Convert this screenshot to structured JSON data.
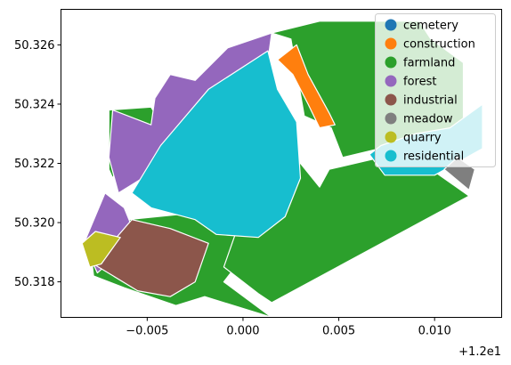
{
  "chart_data": {
    "type": "map",
    "x_offset_label": "+1.2e1",
    "xlim": [
      -0.0095,
      0.0135
    ],
    "ylim": [
      50.3168,
      50.3272
    ],
    "x_ticks": [
      {
        "value": -0.005,
        "label": "−0.005"
      },
      {
        "value": 0.0,
        "label": "0.000"
      },
      {
        "value": 0.005,
        "label": "0.005"
      },
      {
        "value": 0.01,
        "label": "0.010"
      }
    ],
    "y_ticks": [
      {
        "value": 50.318,
        "label": "50.318"
      },
      {
        "value": 50.32,
        "label": "50.320"
      },
      {
        "value": 50.322,
        "label": "50.322"
      },
      {
        "value": 50.324,
        "label": "50.324"
      },
      {
        "value": 50.326,
        "label": "50.326"
      }
    ],
    "legend": {
      "position": "top-right",
      "entries": [
        {
          "label": "cemetery",
          "color": "#1f77b4"
        },
        {
          "label": "construction",
          "color": "#ff7f0e"
        },
        {
          "label": "farmland",
          "color": "#2ca02c"
        },
        {
          "label": "forest",
          "color": "#9467bd"
        },
        {
          "label": "industrial",
          "color": "#8c564b"
        },
        {
          "label": "meadow",
          "color": "#7f7f7f"
        },
        {
          "label": "quarry",
          "color": "#bcbd22"
        },
        {
          "label": "residential",
          "color": "#17becf"
        }
      ]
    },
    "regions": [
      {
        "category": "farmland",
        "coords": [
          [
            -0.0078,
            50.3182
          ],
          [
            -0.0062,
            50.3178
          ],
          [
            -0.0035,
            50.3172
          ],
          [
            -0.002,
            50.3175
          ],
          [
            0.0015,
            50.3168
          ],
          [
            -0.001,
            50.318
          ],
          [
            0.0008,
            50.3195
          ],
          [
            -0.003,
            50.3203
          ],
          [
            -0.006,
            50.3201
          ],
          [
            -0.008,
            50.3193
          ]
        ]
      },
      {
        "category": "farmland",
        "coords": [
          [
            0.0015,
            50.3173
          ],
          [
            0.0118,
            50.3209
          ],
          [
            0.0085,
            50.3224
          ],
          [
            0.0045,
            50.3218
          ],
          [
            0.004,
            50.3212
          ],
          [
            0.003,
            50.322
          ],
          [
            0.0015,
            50.3218
          ],
          [
            0.0003,
            50.321
          ],
          [
            -0.0003,
            50.3198
          ],
          [
            -0.001,
            50.3185
          ],
          [
            0.0008,
            50.3176
          ]
        ]
      },
      {
        "category": "farmland",
        "coords": [
          [
            -0.007,
            50.3238
          ],
          [
            -0.0048,
            50.3239
          ],
          [
            -0.0032,
            50.3222
          ],
          [
            -0.0055,
            50.3214
          ],
          [
            -0.0062,
            50.3224
          ],
          [
            -0.0068,
            50.3215
          ],
          [
            -0.007,
            50.3218
          ]
        ]
      },
      {
        "category": "farmland",
        "coords": [
          [
            0.0015,
            50.3264
          ],
          [
            0.004,
            50.3268
          ],
          [
            0.0092,
            50.3268
          ],
          [
            0.0098,
            50.3262
          ],
          [
            0.0115,
            50.3254
          ],
          [
            0.0115,
            50.323
          ],
          [
            0.0078,
            50.3226
          ],
          [
            0.0052,
            50.3222
          ],
          [
            0.0046,
            50.3232
          ],
          [
            0.0032,
            50.3236
          ],
          [
            0.0025,
            50.3262
          ]
        ]
      },
      {
        "category": "forest",
        "coords": [
          [
            -0.0083,
            50.3193
          ],
          [
            -0.0072,
            50.321
          ],
          [
            -0.0062,
            50.3205
          ],
          [
            -0.0057,
            50.3197
          ],
          [
            -0.0064,
            50.319
          ],
          [
            -0.0076,
            50.3183
          ]
        ]
      },
      {
        "category": "forest",
        "coords": [
          [
            -0.007,
            50.3222
          ],
          [
            -0.0068,
            50.3238
          ],
          [
            -0.0048,
            50.3233
          ],
          [
            -0.0046,
            50.3242
          ],
          [
            -0.0038,
            50.325
          ],
          [
            -0.0025,
            50.3248
          ],
          [
            -0.0008,
            50.3259
          ],
          [
            0.0015,
            50.3264
          ],
          [
            0.0012,
            50.325
          ],
          [
            -0.0003,
            50.3236
          ],
          [
            -0.0025,
            50.3226
          ],
          [
            -0.0055,
            50.3214
          ],
          [
            -0.0065,
            50.321
          ]
        ]
      },
      {
        "category": "industrial",
        "coords": [
          [
            -0.0078,
            50.3186
          ],
          [
            -0.0055,
            50.3177
          ],
          [
            -0.0038,
            50.3175
          ],
          [
            -0.0025,
            50.318
          ],
          [
            -0.0018,
            50.3193
          ],
          [
            -0.0038,
            50.3198
          ],
          [
            -0.0058,
            50.3201
          ]
        ]
      },
      {
        "category": "quarry",
        "coords": [
          [
            -0.0084,
            50.3193
          ],
          [
            -0.0077,
            50.3197
          ],
          [
            -0.0064,
            50.3195
          ],
          [
            -0.0074,
            50.3186
          ],
          [
            -0.008,
            50.3185
          ]
        ]
      },
      {
        "category": "residential",
        "coords": [
          [
            -0.0058,
            50.321
          ],
          [
            -0.0043,
            50.3226
          ],
          [
            -0.0018,
            50.3245
          ],
          [
            0.0013,
            50.3258
          ],
          [
            0.0018,
            50.3245
          ],
          [
            0.0028,
            50.3234
          ],
          [
            0.003,
            50.3215
          ],
          [
            0.0022,
            50.3202
          ],
          [
            0.0008,
            50.3195
          ],
          [
            -0.0014,
            50.3196
          ],
          [
            -0.0025,
            50.3201
          ],
          [
            -0.0048,
            50.3205
          ]
        ]
      },
      {
        "category": "construction",
        "coords": [
          [
            0.0018,
            50.3255
          ],
          [
            0.0028,
            50.326
          ],
          [
            0.0034,
            50.325
          ],
          [
            0.0045,
            50.3237
          ],
          [
            0.0048,
            50.3233
          ],
          [
            0.004,
            50.3232
          ],
          [
            0.0034,
            50.324
          ],
          [
            0.0026,
            50.325
          ]
        ]
      },
      {
        "category": "residential",
        "coords": [
          [
            0.0066,
            50.3223
          ],
          [
            0.0072,
            50.3226
          ],
          [
            0.009,
            50.323
          ],
          [
            0.0108,
            50.3232
          ],
          [
            0.0125,
            50.324
          ],
          [
            0.0125,
            50.3225
          ],
          [
            0.01,
            50.3216
          ],
          [
            0.0074,
            50.3216
          ]
        ]
      },
      {
        "category": "meadow",
        "coords": [
          [
            0.0105,
            50.3218
          ],
          [
            0.0118,
            50.3211
          ],
          [
            0.0121,
            50.3218
          ],
          [
            0.0112,
            50.3222
          ]
        ]
      }
    ]
  }
}
